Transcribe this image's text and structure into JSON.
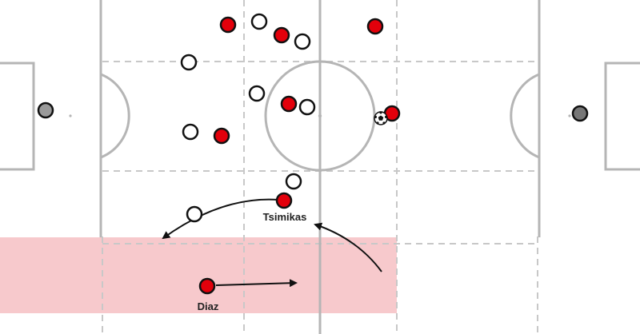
{
  "colors": {
    "pitch_line": "#b5b5b5",
    "zone_line": "#c8c8c8",
    "highlight": "#f7c9cc",
    "team_red": "#e3000b",
    "team_white": "#ffffff",
    "goalkeeper": "#8c8c8c",
    "outline": "#111111",
    "arrow": "#111111"
  },
  "highlight_zone": {
    "name": "left-flank-zone"
  },
  "players": [
    {
      "id": "red-1",
      "team": "red"
    },
    {
      "id": "red-2",
      "team": "red"
    },
    {
      "id": "red-3",
      "team": "red"
    },
    {
      "id": "red-4",
      "team": "red"
    },
    {
      "id": "red-5",
      "team": "red"
    },
    {
      "id": "red-6",
      "team": "red"
    },
    {
      "id": "red-7",
      "team": "red"
    },
    {
      "id": "tsimikas",
      "team": "red",
      "label": "Tsimikas"
    },
    {
      "id": "diaz",
      "team": "red",
      "label": "Diaz"
    },
    {
      "id": "white-1",
      "team": "white"
    },
    {
      "id": "white-2",
      "team": "white"
    },
    {
      "id": "white-3",
      "team": "white"
    },
    {
      "id": "white-4",
      "team": "white"
    },
    {
      "id": "white-5",
      "team": "white"
    },
    {
      "id": "white-6",
      "team": "white"
    },
    {
      "id": "white-7",
      "team": "white"
    },
    {
      "id": "white-8",
      "team": "white"
    },
    {
      "id": "gk-left",
      "team": "goalkeeper"
    },
    {
      "id": "gk-right",
      "team": "goalkeeper"
    }
  ],
  "ball": {
    "icon": "football-icon"
  },
  "arrows": [
    {
      "id": "tsimikas-run",
      "icon": "curved-arrow-icon"
    },
    {
      "id": "diaz-run",
      "icon": "straight-arrow-icon"
    },
    {
      "id": "diagonal-run",
      "icon": "curved-arrow-icon"
    }
  ]
}
